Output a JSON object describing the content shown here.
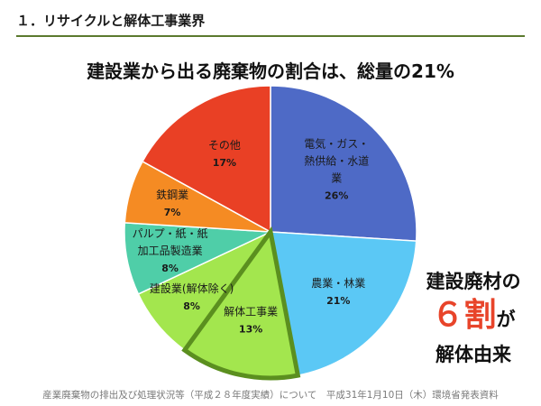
{
  "header": {
    "section_title": "１．リサイクルと解体工事業界"
  },
  "callout": {
    "line1": "建設廃材の",
    "big": "６割",
    "suffix": "が",
    "line3": "解体由来"
  },
  "source_note": "産業廃棄物の排出及び処理状況等（平成２８年度実績）について　平成31年1月10日（木）環境省発表資料",
  "chart_data": {
    "type": "pie",
    "title": "建設業から出る廃棄物の割合は、総量の21%",
    "unit": "%",
    "start_angle_deg": 0,
    "direction": "clockwise",
    "slices": [
      {
        "label_lines": [
          "電気・ガス・",
          "熱供給・水道",
          "業"
        ],
        "value": 26,
        "value_label": "26%",
        "color": "#4e6ac6"
      },
      {
        "label_lines": [
          "農業・林業"
        ],
        "value": 21,
        "value_label": "21%",
        "color": "#5bc8f5"
      },
      {
        "label_lines": [
          "解体工事業"
        ],
        "value": 13,
        "value_label": "13%",
        "color": "#a3e64e",
        "highlight": true,
        "highlight_color": "#5b8f1f"
      },
      {
        "label_lines": [
          "建設業(解体除く)"
        ],
        "value": 8,
        "value_label": "8%",
        "color": "#a3e64e"
      },
      {
        "label_lines": [
          "パルプ・紙・紙",
          "加工品製造業"
        ],
        "value": 8,
        "value_label": "8%",
        "color": "#4fcea8"
      },
      {
        "label_lines": [
          "鉄鋼業"
        ],
        "value": 7,
        "value_label": "7%",
        "color": "#f58b23"
      },
      {
        "label_lines": [
          "その他"
        ],
        "value": 17,
        "value_label": "17%",
        "color": "#e94025"
      }
    ]
  }
}
